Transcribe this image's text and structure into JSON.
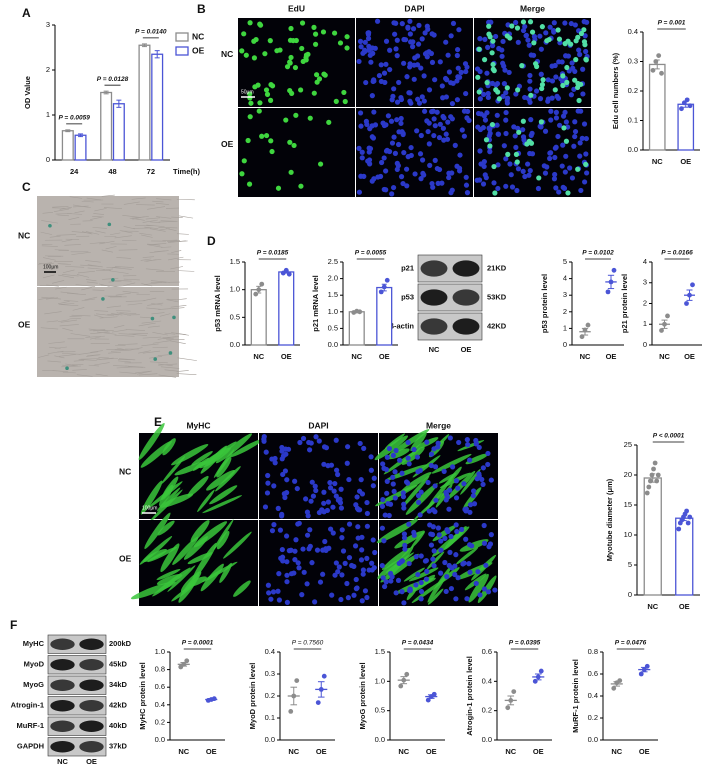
{
  "panel_labels": [
    "A",
    "B",
    "C",
    "D",
    "E",
    "F"
  ],
  "edu_images": {
    "columns": [
      "EdU",
      "DAPI",
      "Merge"
    ],
    "rows": [
      "NC",
      "OE"
    ],
    "scale_bar": "50μm"
  },
  "senescence_images": {
    "rows": [
      "NC",
      "OE"
    ],
    "scale_bar": "100μm"
  },
  "myhc_images": {
    "columns": [
      "MyHC",
      "DAPI",
      "Merge"
    ],
    "rows": [
      "NC",
      "OE"
    ],
    "scale_bar": "100μm"
  },
  "blot_d": {
    "rows": [
      {
        "label": "p21",
        "size": "21KD"
      },
      {
        "label": "p53",
        "size": "53KD"
      },
      {
        "label": "β-actin",
        "size": "42KD"
      }
    ],
    "columns": [
      "NC",
      "OE"
    ]
  },
  "blot_f": {
    "rows": [
      {
        "label": "MyHC",
        "size": "200kD"
      },
      {
        "label": "MyoD",
        "size": "45kD"
      },
      {
        "label": "MyoG",
        "size": "34kD"
      },
      {
        "label": "Atrogin-1",
        "size": "42kD"
      },
      {
        "label": "MuRF-1",
        "size": "40kD"
      },
      {
        "label": "GAPDH",
        "size": "37kD"
      }
    ],
    "columns": [
      "NC",
      "OE"
    ]
  },
  "chart_data": [
    {
      "type": "bar",
      "ylabel": "OD Value",
      "xlabel": "Time(h)",
      "categories": [
        "24",
        "48",
        "72"
      ],
      "series": [
        {
          "name": "NC",
          "color": "#8c8c8c",
          "values": [
            0.65,
            1.5,
            2.55
          ],
          "errors": [
            0.02,
            0.03,
            0.03
          ]
        },
        {
          "name": "OE",
          "color": "#4b55d6",
          "values": [
            0.55,
            1.25,
            2.35
          ],
          "errors": [
            0.03,
            0.08,
            0.08
          ]
        }
      ],
      "annotations": [
        "P = 0.0059",
        "P = 0.0128",
        "P = 0.0140"
      ],
      "ylim": [
        0,
        3
      ],
      "yticks": [
        0,
        1,
        2,
        3
      ]
    },
    {
      "type": "bar",
      "ylabel": "Edu cell numbers (%)",
      "categories": [
        "NC",
        "OE"
      ],
      "colors": [
        "#8c8c8c",
        "#4b55d6"
      ],
      "values": [
        0.29,
        0.155
      ],
      "errors": [
        0.015,
        0.01
      ],
      "points": [
        [
          0.27,
          0.3,
          0.32,
          0.26
        ],
        [
          0.14,
          0.16,
          0.17,
          0.15
        ]
      ],
      "annotation": "P = 0.001",
      "annotation_bold": true,
      "ylim": [
        0,
        0.4
      ],
      "yticks": [
        {
          "value": 0,
          "label": "0.0"
        },
        0.1,
        0.2,
        0.3,
        0.4
      ]
    },
    {
      "type": "bar",
      "ylabel": "p53 mRNA level",
      "categories": [
        "NC",
        "OE"
      ],
      "colors": [
        "#8c8c8c",
        "#4b55d6"
      ],
      "values": [
        1.0,
        1.32
      ],
      "errors": [
        0.06,
        0.02
      ],
      "points": [
        [
          0.92,
          1.0,
          1.1
        ],
        [
          1.3,
          1.35,
          1.28
        ]
      ],
      "annotation": "P = 0.0185",
      "annotation_bold": true,
      "ylim": [
        0,
        1.5
      ],
      "yticks": [
        {
          "value": 0,
          "label": "0.0"
        },
        0.5,
        {
          "value": 1,
          "label": "1.0"
        },
        1.5
      ]
    },
    {
      "type": "bar",
      "ylabel": "p21 mRNA level",
      "categories": [
        "NC",
        "OE"
      ],
      "colors": [
        "#8c8c8c",
        "#4b55d6"
      ],
      "values": [
        1.0,
        1.73
      ],
      "errors": [
        0.01,
        0.1
      ],
      "points": [
        [
          0.98,
          1.02,
          1.0
        ],
        [
          1.6,
          1.75,
          1.95
        ]
      ],
      "annotation": "P = 0.0055",
      "annotation_bold": true,
      "ylim": [
        0,
        2.5
      ],
      "yticks": [
        {
          "value": 0,
          "label": "0.0"
        },
        0.5,
        {
          "value": 1,
          "label": "1.0"
        },
        1.5,
        {
          "value": 2,
          "label": "2.0"
        },
        2.5
      ]
    },
    {
      "type": "dot",
      "ylabel": "p53 protein level",
      "categories": [
        "NC",
        "OE"
      ],
      "colors": [
        "#8c8c8c",
        "#4b55d6"
      ],
      "values": [
        0.8,
        3.8
      ],
      "errors": [
        0.2,
        0.4
      ],
      "points": [
        [
          0.5,
          0.9,
          1.2
        ],
        [
          3.2,
          3.8,
          4.5
        ]
      ],
      "annotation": "P = 0.0102",
      "annotation_bold": true,
      "ylim": [
        0,
        5
      ],
      "yticks": [
        0,
        1,
        2,
        3,
        4,
        5
      ]
    },
    {
      "type": "dot",
      "ylabel": "p21 protein level",
      "categories": [
        "NC",
        "OE"
      ],
      "colors": [
        "#8c8c8c",
        "#4b55d6"
      ],
      "values": [
        1.0,
        2.4
      ],
      "errors": [
        0.2,
        0.25
      ],
      "points": [
        [
          0.7,
          1.0,
          1.4
        ],
        [
          2.0,
          2.4,
          2.9
        ]
      ],
      "annotation": "P = 0.0166",
      "annotation_bold": true,
      "ylim": [
        0,
        4
      ],
      "yticks": [
        0,
        1,
        2,
        3,
        4
      ]
    },
    {
      "type": "bar",
      "ylabel": "Myotube diameter (μm)",
      "categories": [
        "NC",
        "OE"
      ],
      "colors": [
        "#8c8c8c",
        "#4b55d6"
      ],
      "values": [
        19.5,
        12.8
      ],
      "errors": [
        0.7,
        0.4
      ],
      "points": [
        [
          17,
          18,
          19,
          20,
          21,
          22,
          19,
          20
        ],
        [
          11,
          12,
          12.5,
          13,
          13.5,
          14,
          12,
          13
        ]
      ],
      "annotation": "P < 0.0001",
      "annotation_bold": true,
      "ylim": [
        0,
        25
      ],
      "yticks": [
        0,
        5,
        10,
        15,
        20,
        25
      ]
    },
    {
      "type": "dot",
      "ylabel": "MyHC protein level",
      "categories": [
        "NC",
        "OE"
      ],
      "colors": [
        "#8c8c8c",
        "#4b55d6"
      ],
      "values": [
        0.86,
        0.46
      ],
      "errors": [
        0.02,
        0.01
      ],
      "points": [
        [
          0.83,
          0.86,
          0.9
        ],
        [
          0.45,
          0.46,
          0.47
        ]
      ],
      "annotation": "P = 0.0001",
      "annotation_bold": true,
      "ylim": [
        0,
        1
      ],
      "yticks": [
        {
          "value": 0,
          "label": "0.0"
        },
        0.2,
        0.4,
        0.6,
        0.8,
        {
          "value": 1,
          "label": "1.0"
        }
      ]
    },
    {
      "type": "dot",
      "ylabel": "MyoD protein level",
      "categories": [
        "NC",
        "OE"
      ],
      "colors": [
        "#8c8c8c",
        "#4b55d6"
      ],
      "values": [
        0.2,
        0.23
      ],
      "errors": [
        0.04,
        0.035
      ],
      "points": [
        [
          0.13,
          0.2,
          0.27
        ],
        [
          0.17,
          0.23,
          0.29
        ]
      ],
      "annotation": "P = 0.7560",
      "annotation_bold": false,
      "ylim": [
        0,
        0.4
      ],
      "yticks": [
        {
          "value": 0,
          "label": "0.0"
        },
        0.1,
        0.2,
        0.3,
        0.4
      ]
    },
    {
      "type": "dot",
      "ylabel": "MyoG protein level",
      "categories": [
        "NC",
        "OE"
      ],
      "colors": [
        "#8c8c8c",
        "#4b55d6"
      ],
      "values": [
        1.02,
        0.74
      ],
      "errors": [
        0.06,
        0.03
      ],
      "points": [
        [
          0.92,
          1.02,
          1.12
        ],
        [
          0.68,
          0.74,
          0.78
        ]
      ],
      "annotation": "P = 0.0434",
      "annotation_bold": true,
      "ylim": [
        0,
        1.5
      ],
      "yticks": [
        {
          "value": 0,
          "label": "0.0"
        },
        0.5,
        {
          "value": 1,
          "label": "1.0"
        },
        1.5
      ]
    },
    {
      "type": "dot",
      "ylabel": "Atrogin-1 protein level",
      "categories": [
        "NC",
        "OE"
      ],
      "colors": [
        "#8c8c8c",
        "#4b55d6"
      ],
      "values": [
        0.27,
        0.43
      ],
      "errors": [
        0.03,
        0.02
      ],
      "points": [
        [
          0.22,
          0.27,
          0.33
        ],
        [
          0.4,
          0.43,
          0.47
        ]
      ],
      "annotation": "P = 0.0395",
      "annotation_bold": true,
      "ylim": [
        0,
        0.6
      ],
      "yticks": [
        {
          "value": 0,
          "label": "0.0"
        },
        0.2,
        0.4,
        0.6
      ]
    },
    {
      "type": "dot",
      "ylabel": "MuRF-1 protein level",
      "categories": [
        "NC",
        "OE"
      ],
      "colors": [
        "#8c8c8c",
        "#4b55d6"
      ],
      "values": [
        0.51,
        0.64
      ],
      "errors": [
        0.02,
        0.02
      ],
      "points": [
        [
          0.47,
          0.52,
          0.54
        ],
        [
          0.6,
          0.64,
          0.67
        ]
      ],
      "annotation": "P = 0.0476",
      "annotation_bold": true,
      "ylim": [
        0,
        0.8
      ],
      "yticks": [
        {
          "value": 0,
          "label": "0.0"
        },
        0.2,
        0.4,
        0.6,
        0.8
      ]
    }
  ]
}
